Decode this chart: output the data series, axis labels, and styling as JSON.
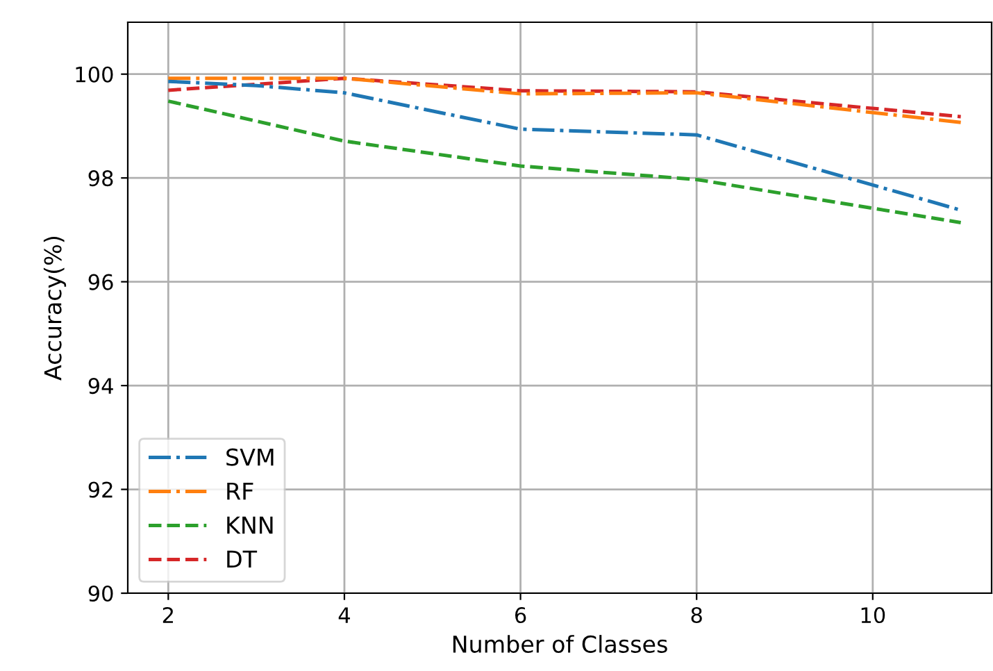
{
  "chart_data": {
    "type": "line",
    "xlabel": "Number of Classes",
    "ylabel": "Accuracy(%)",
    "x": [
      2,
      4,
      6,
      8,
      11
    ],
    "series": [
      {
        "name": "SVM",
        "color": "#1f77b4",
        "line_style": "dashdot",
        "x": [
          2,
          3,
          4,
          6,
          8,
          11
        ],
        "values": [
          99.86,
          99.78,
          99.64,
          98.94,
          98.83,
          97.38
        ]
      },
      {
        "name": "RF",
        "color": "#ff7f0e",
        "line_style": "dashdot",
        "values": [
          99.92,
          99.92,
          99.62,
          99.64,
          99.07
        ]
      },
      {
        "name": "KNN",
        "color": "#2ca02c",
        "line_style": "dashed",
        "values": [
          99.48,
          98.71,
          98.23,
          97.97,
          97.14
        ]
      },
      {
        "name": "DT",
        "color": "#d62728",
        "line_style": "dashed",
        "values": [
          99.69,
          99.92,
          99.68,
          99.66,
          99.18
        ]
      }
    ],
    "xlim": [
      1.54,
      11.35
    ],
    "ylim": [
      90,
      101
    ],
    "xticks": [
      2,
      4,
      6,
      8,
      10
    ],
    "yticks": [
      90,
      92,
      94,
      96,
      98,
      100
    ],
    "grid": true,
    "legend": "bottom left",
    "marker": "none"
  }
}
